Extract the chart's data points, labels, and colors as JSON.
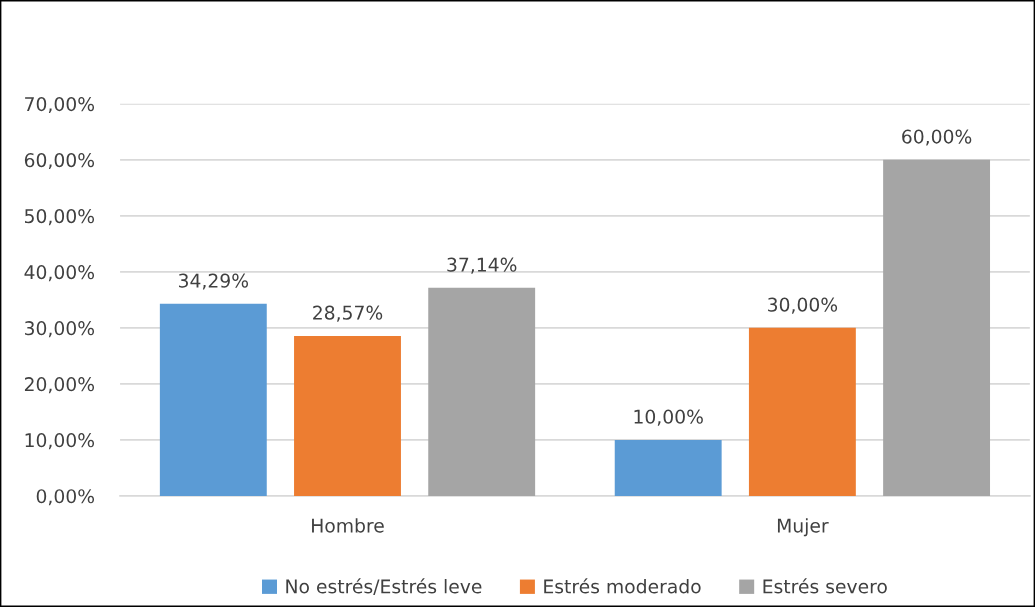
{
  "chart_data": {
    "type": "bar",
    "categories": [
      "Hombre",
      "Mujer"
    ],
    "series": [
      {
        "name": "No estrés/Estrés leve",
        "color": "#5b9bd5",
        "values": [
          34.29,
          10.0
        ],
        "value_labels": [
          "34,29%",
          "10,00%"
        ]
      },
      {
        "name": "Estrés moderado",
        "color": "#ed7d31",
        "values": [
          28.57,
          30.0
        ],
        "value_labels": [
          "28,57%",
          "30,00%"
        ]
      },
      {
        "name": "Estrés severo",
        "color": "#a5a5a5",
        "values": [
          37.14,
          60.0
        ],
        "value_labels": [
          "37,14%",
          "60,00%"
        ]
      }
    ],
    "ylim": [
      0,
      70
    ],
    "yticks": [
      {
        "value": 0,
        "label": "0,00%"
      },
      {
        "value": 10,
        "label": "10,00%"
      },
      {
        "value": 20,
        "label": "20,00%"
      },
      {
        "value": 30,
        "label": "30,00%"
      },
      {
        "value": 40,
        "label": "40,00%"
      },
      {
        "value": 50,
        "label": "50,00%"
      },
      {
        "value": 60,
        "label": "60,00%"
      },
      {
        "value": 70,
        "label": "70,00%"
      }
    ],
    "grid": "y",
    "legend": "bottom"
  }
}
